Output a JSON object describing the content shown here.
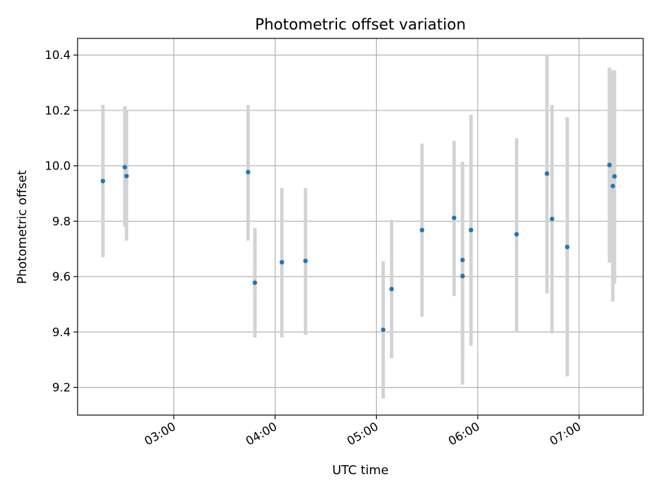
{
  "chart_data": {
    "type": "scatter",
    "title": "Photometric offset variation",
    "xlabel": "UTC time",
    "ylabel": "Photometric offset",
    "x_type": "time",
    "xlim": [
      "02:03",
      "07:38"
    ],
    "ylim": [
      9.1,
      10.46
    ],
    "x_ticks": [
      "03:00",
      "04:00",
      "05:00",
      "06:00",
      "07:00"
    ],
    "y_ticks": [
      "9.2",
      "9.4",
      "9.6",
      "9.8",
      "10.0",
      "10.2",
      "10.4"
    ],
    "grid": true,
    "colors": {
      "point": "#1f77b4",
      "errorbar": "#d3d3d3",
      "grid": "#b0b0b0"
    },
    "points": [
      {
        "x": "02:18",
        "y": 9.945,
        "ylow": 9.67,
        "yhigh": 10.22
      },
      {
        "x": "02:31",
        "y": 9.995,
        "ylow": 9.78,
        "yhigh": 10.215
      },
      {
        "x": "02:32",
        "y": 9.963,
        "ylow": 9.73,
        "yhigh": 10.2
      },
      {
        "x": "03:44",
        "y": 9.977,
        "ylow": 9.73,
        "yhigh": 10.22
      },
      {
        "x": "03:48",
        "y": 9.578,
        "ylow": 9.38,
        "yhigh": 9.775
      },
      {
        "x": "04:04",
        "y": 9.652,
        "ylow": 9.38,
        "yhigh": 9.92
      },
      {
        "x": "04:18",
        "y": 9.657,
        "ylow": 9.39,
        "yhigh": 9.92
      },
      {
        "x": "05:04",
        "y": 9.408,
        "ylow": 9.16,
        "yhigh": 9.655
      },
      {
        "x": "05:09",
        "y": 9.555,
        "ylow": 9.305,
        "yhigh": 9.805
      },
      {
        "x": "05:27",
        "y": 9.768,
        "ylow": 9.455,
        "yhigh": 10.08
      },
      {
        "x": "05:46",
        "y": 9.812,
        "ylow": 9.53,
        "yhigh": 10.09
      },
      {
        "x": "05:51",
        "y": 9.66,
        "ylow": 9.31,
        "yhigh": 10.01
      },
      {
        "x": "05:51",
        "y": 9.602,
        "ylow": 9.21,
        "yhigh": 10.015
      },
      {
        "x": "05:56",
        "y": 9.768,
        "ylow": 9.35,
        "yhigh": 10.185
      },
      {
        "x": "06:23",
        "y": 9.753,
        "ylow": 9.4,
        "yhigh": 10.1
      },
      {
        "x": "06:41",
        "y": 9.972,
        "ylow": 9.54,
        "yhigh": 10.4
      },
      {
        "x": "06:44",
        "y": 9.808,
        "ylow": 9.395,
        "yhigh": 10.22
      },
      {
        "x": "06:53",
        "y": 9.707,
        "ylow": 9.24,
        "yhigh": 10.175
      },
      {
        "x": "07:18",
        "y": 10.003,
        "ylow": 9.65,
        "yhigh": 10.355
      },
      {
        "x": "07:20",
        "y": 9.927,
        "ylow": 9.51,
        "yhigh": 10.345
      },
      {
        "x": "07:21",
        "y": 9.962,
        "ylow": 9.575,
        "yhigh": 10.345
      }
    ]
  }
}
